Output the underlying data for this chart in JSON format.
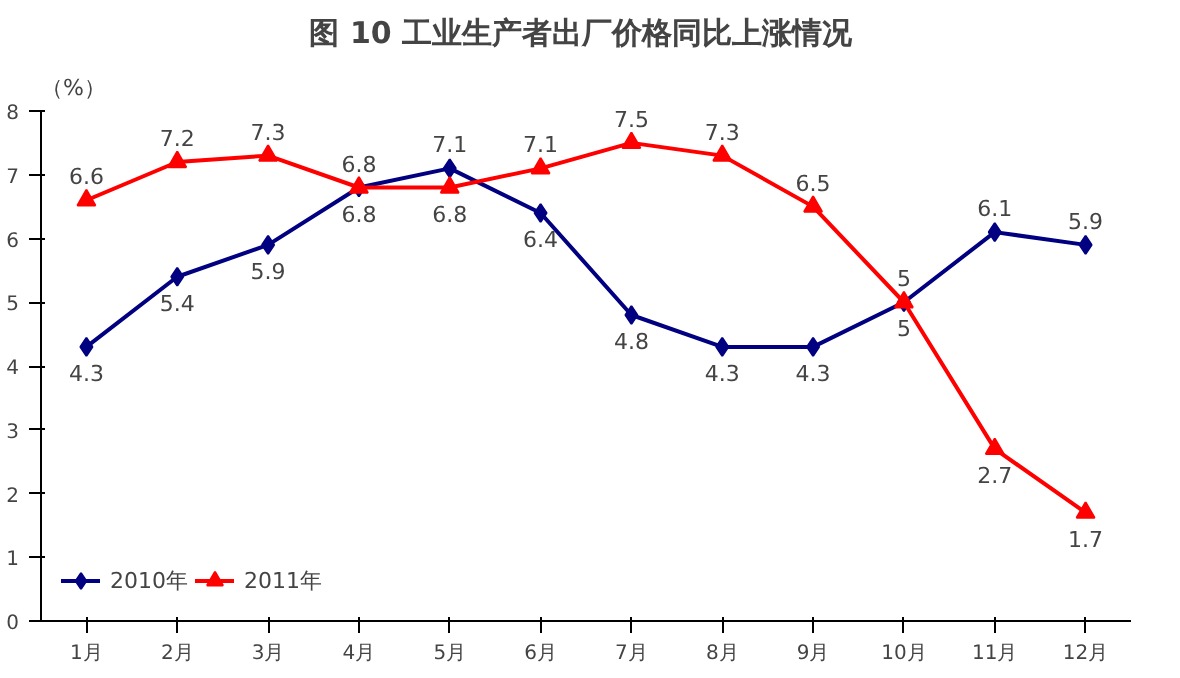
{
  "chart_data": {
    "type": "line",
    "title": "图 10  工业生产者出厂价格同比上涨情况",
    "ylabel": "（%）",
    "categories": [
      "1月",
      "2月",
      "3月",
      "4月",
      "5月",
      "6月",
      "7月",
      "8月",
      "9月",
      "10月",
      "11月",
      "12月"
    ],
    "series": [
      {
        "name": "2010年",
        "color": "#000080",
        "marker": "diamond",
        "values": [
          4.3,
          5.4,
          5.9,
          6.8,
          7.1,
          6.4,
          4.8,
          4.3,
          4.3,
          5,
          6.1,
          5.9
        ]
      },
      {
        "name": "2011年",
        "color": "#ff0000",
        "marker": "triangle",
        "values": [
          6.6,
          7.2,
          7.3,
          6.8,
          6.8,
          7.1,
          7.5,
          7.3,
          6.5,
          5,
          2.7,
          1.7
        ]
      }
    ],
    "ylim": [
      0,
      8
    ],
    "yticks": [
      0,
      1,
      2,
      3,
      4,
      5,
      6,
      7,
      8
    ],
    "grid": false,
    "legend": "bottom left",
    "data_labels": true,
    "line_style": "solid"
  }
}
